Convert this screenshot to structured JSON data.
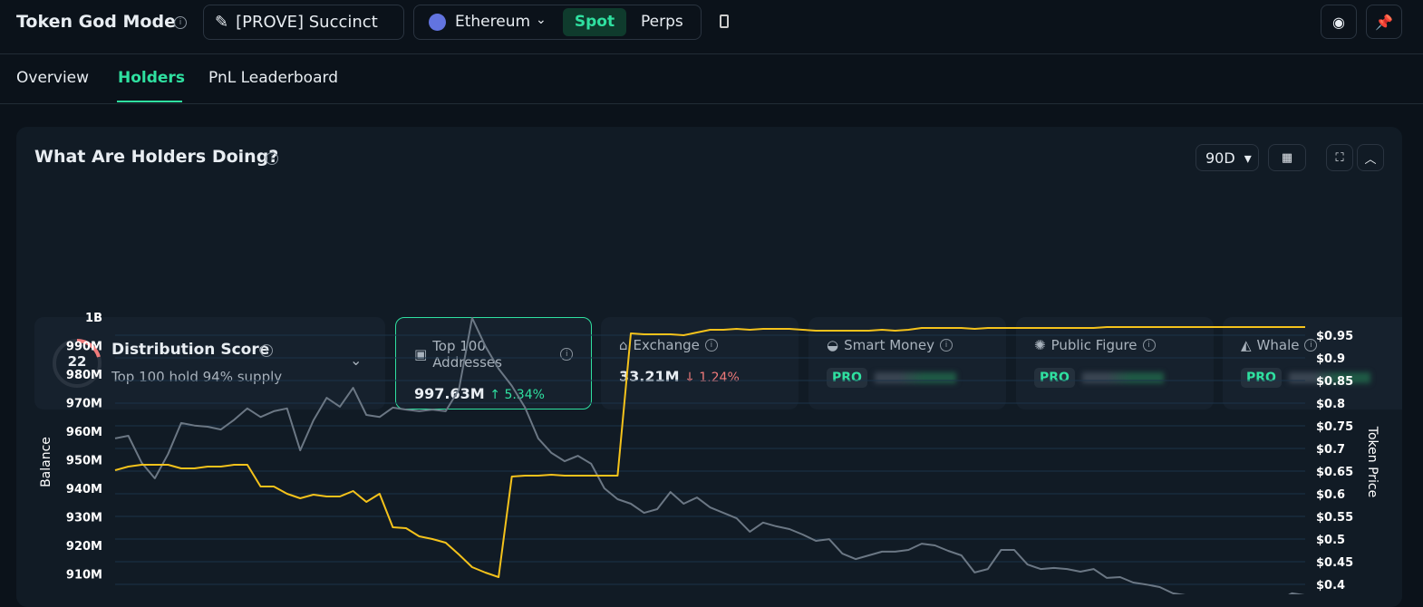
{
  "header": {
    "title": "Token God Mode",
    "token": "[PROVE] Succinct",
    "chain": "Ethereum",
    "modes": [
      "Spot",
      "Perps"
    ]
  },
  "tabs": [
    "Overview",
    "Holders",
    "PnL Leaderboard"
  ],
  "panel": {
    "title": "What Are Holders Doing?",
    "period": "90D"
  },
  "distribution": {
    "score": 22,
    "title": "Distribution Score",
    "subtitle": "Top 100 hold 94% supply"
  },
  "cards": [
    {
      "label": "Top 100 Addresses",
      "value": "997.63M",
      "change": "5.34%"
    },
    {
      "label": "Exchange",
      "value": "33.21M",
      "change": "1.24%"
    },
    {
      "label": "Smart Money",
      "badge": "PRO"
    },
    {
      "label": "Public Figure",
      "badge": "PRO"
    },
    {
      "label": "Whale",
      "badge": "PRO"
    }
  ],
  "chart_data": {
    "type": "line",
    "y_label": "Balance",
    "y2_label": "Token Price",
    "grid": true,
    "ylim": [
      900000000,
      1000000000
    ],
    "yticks": [
      {
        "value": 1000000000,
        "label": "1B"
      },
      {
        "value": 990000000,
        "label": "990M"
      },
      {
        "value": 980000000,
        "label": "980M"
      },
      {
        "value": 970000000,
        "label": "970M"
      },
      {
        "value": 960000000,
        "label": "960M"
      },
      {
        "value": 950000000,
        "label": "950M"
      },
      {
        "value": 940000000,
        "label": "940M"
      },
      {
        "value": 930000000,
        "label": "930M"
      },
      {
        "value": 920000000,
        "label": "920M"
      },
      {
        "value": 910000000,
        "label": "910M"
      }
    ],
    "y2lim": [
      0.4,
      1.0
    ],
    "y2ticks": [
      {
        "value": 0.95,
        "label": "$0.95"
      },
      {
        "value": 0.9,
        "label": "$0.9"
      },
      {
        "value": 0.85,
        "label": "$0.85"
      },
      {
        "value": 0.8,
        "label": "$0.8"
      },
      {
        "value": 0.75,
        "label": "$0.75"
      },
      {
        "value": 0.7,
        "label": "$0.7"
      },
      {
        "value": 0.65,
        "label": "$0.65"
      },
      {
        "value": 0.6,
        "label": "$0.6"
      },
      {
        "value": 0.55,
        "label": "$0.55"
      },
      {
        "value": 0.5,
        "label": "$0.5"
      },
      {
        "value": 0.45,
        "label": "$0.45"
      },
      {
        "value": 0.4,
        "label": "$0.4"
      }
    ],
    "series": [
      {
        "name": "Balance",
        "color": "#6b7784",
        "values": [
          957500000,
          958400000,
          949000000,
          943500000,
          952000000,
          962900000,
          962000000,
          961600000,
          960600000,
          964000000,
          968000000,
          965000000,
          967000000,
          968000000,
          953300000,
          963800000,
          971700000,
          968600000,
          975200000,
          965700000,
          965000000,
          968300000,
          967600000,
          967000000,
          967600000,
          967000000,
          974600000,
          999700000,
          989800000,
          981900000,
          975900000,
          968300000,
          957500000,
          952400000,
          949500000,
          951400000,
          948600000,
          940000000,
          936200000,
          934600000,
          931400000,
          932700000,
          938700000,
          934600000,
          936800000,
          933300000,
          931400000,
          929500000,
          924800000,
          928000000,
          926700000,
          925700000,
          923800000,
          921600000,
          922200000,
          917100000,
          915200000,
          916500000,
          917800000,
          917800000,
          918400000,
          920600000,
          920000000,
          918100000,
          916500000,
          910500000,
          911700000,
          918400000,
          918400000,
          913300000,
          911700000,
          912100000,
          911700000,
          910800000,
          911700000,
          908600000,
          908900000,
          907000000,
          906300000,
          905400000,
          903200000,
          902500000,
          901800000,
          901000000,
          900500000,
          900200000,
          900800000,
          900500000,
          900800000,
          903200000,
          902500000
        ]
      },
      {
        "name": "Token Price",
        "color": "#f4c21b",
        "axis": "y2",
        "values": [
          0.652,
          0.66,
          0.664,
          0.664,
          0.664,
          0.656,
          0.656,
          0.66,
          0.66,
          0.664,
          0.664,
          0.616,
          0.616,
          0.6,
          0.59,
          0.598,
          0.594,
          0.594,
          0.606,
          0.582,
          0.6,
          0.526,
          0.524,
          0.506,
          0.5,
          0.492,
          0.466,
          0.438,
          0.426,
          0.416,
          0.638,
          0.64,
          0.64,
          0.642,
          0.64,
          0.64,
          0.64,
          0.64,
          0.64,
          0.954,
          0.952,
          0.952,
          0.952,
          0.95,
          0.956,
          0.962,
          0.962,
          0.964,
          0.962,
          0.964,
          0.964,
          0.964,
          0.962,
          0.96,
          0.96,
          0.96,
          0.96,
          0.96,
          0.962,
          0.96,
          0.962,
          0.966,
          0.966,
          0.966,
          0.966,
          0.964,
          0.966,
          0.966,
          0.966,
          0.966,
          0.966,
          0.966,
          0.966,
          0.966,
          0.966,
          0.968,
          0.968,
          0.968,
          0.968,
          0.968,
          0.968,
          0.968,
          0.968,
          0.968,
          0.968,
          0.968,
          0.968,
          0.968,
          0.968,
          0.968,
          0.968
        ]
      }
    ]
  }
}
